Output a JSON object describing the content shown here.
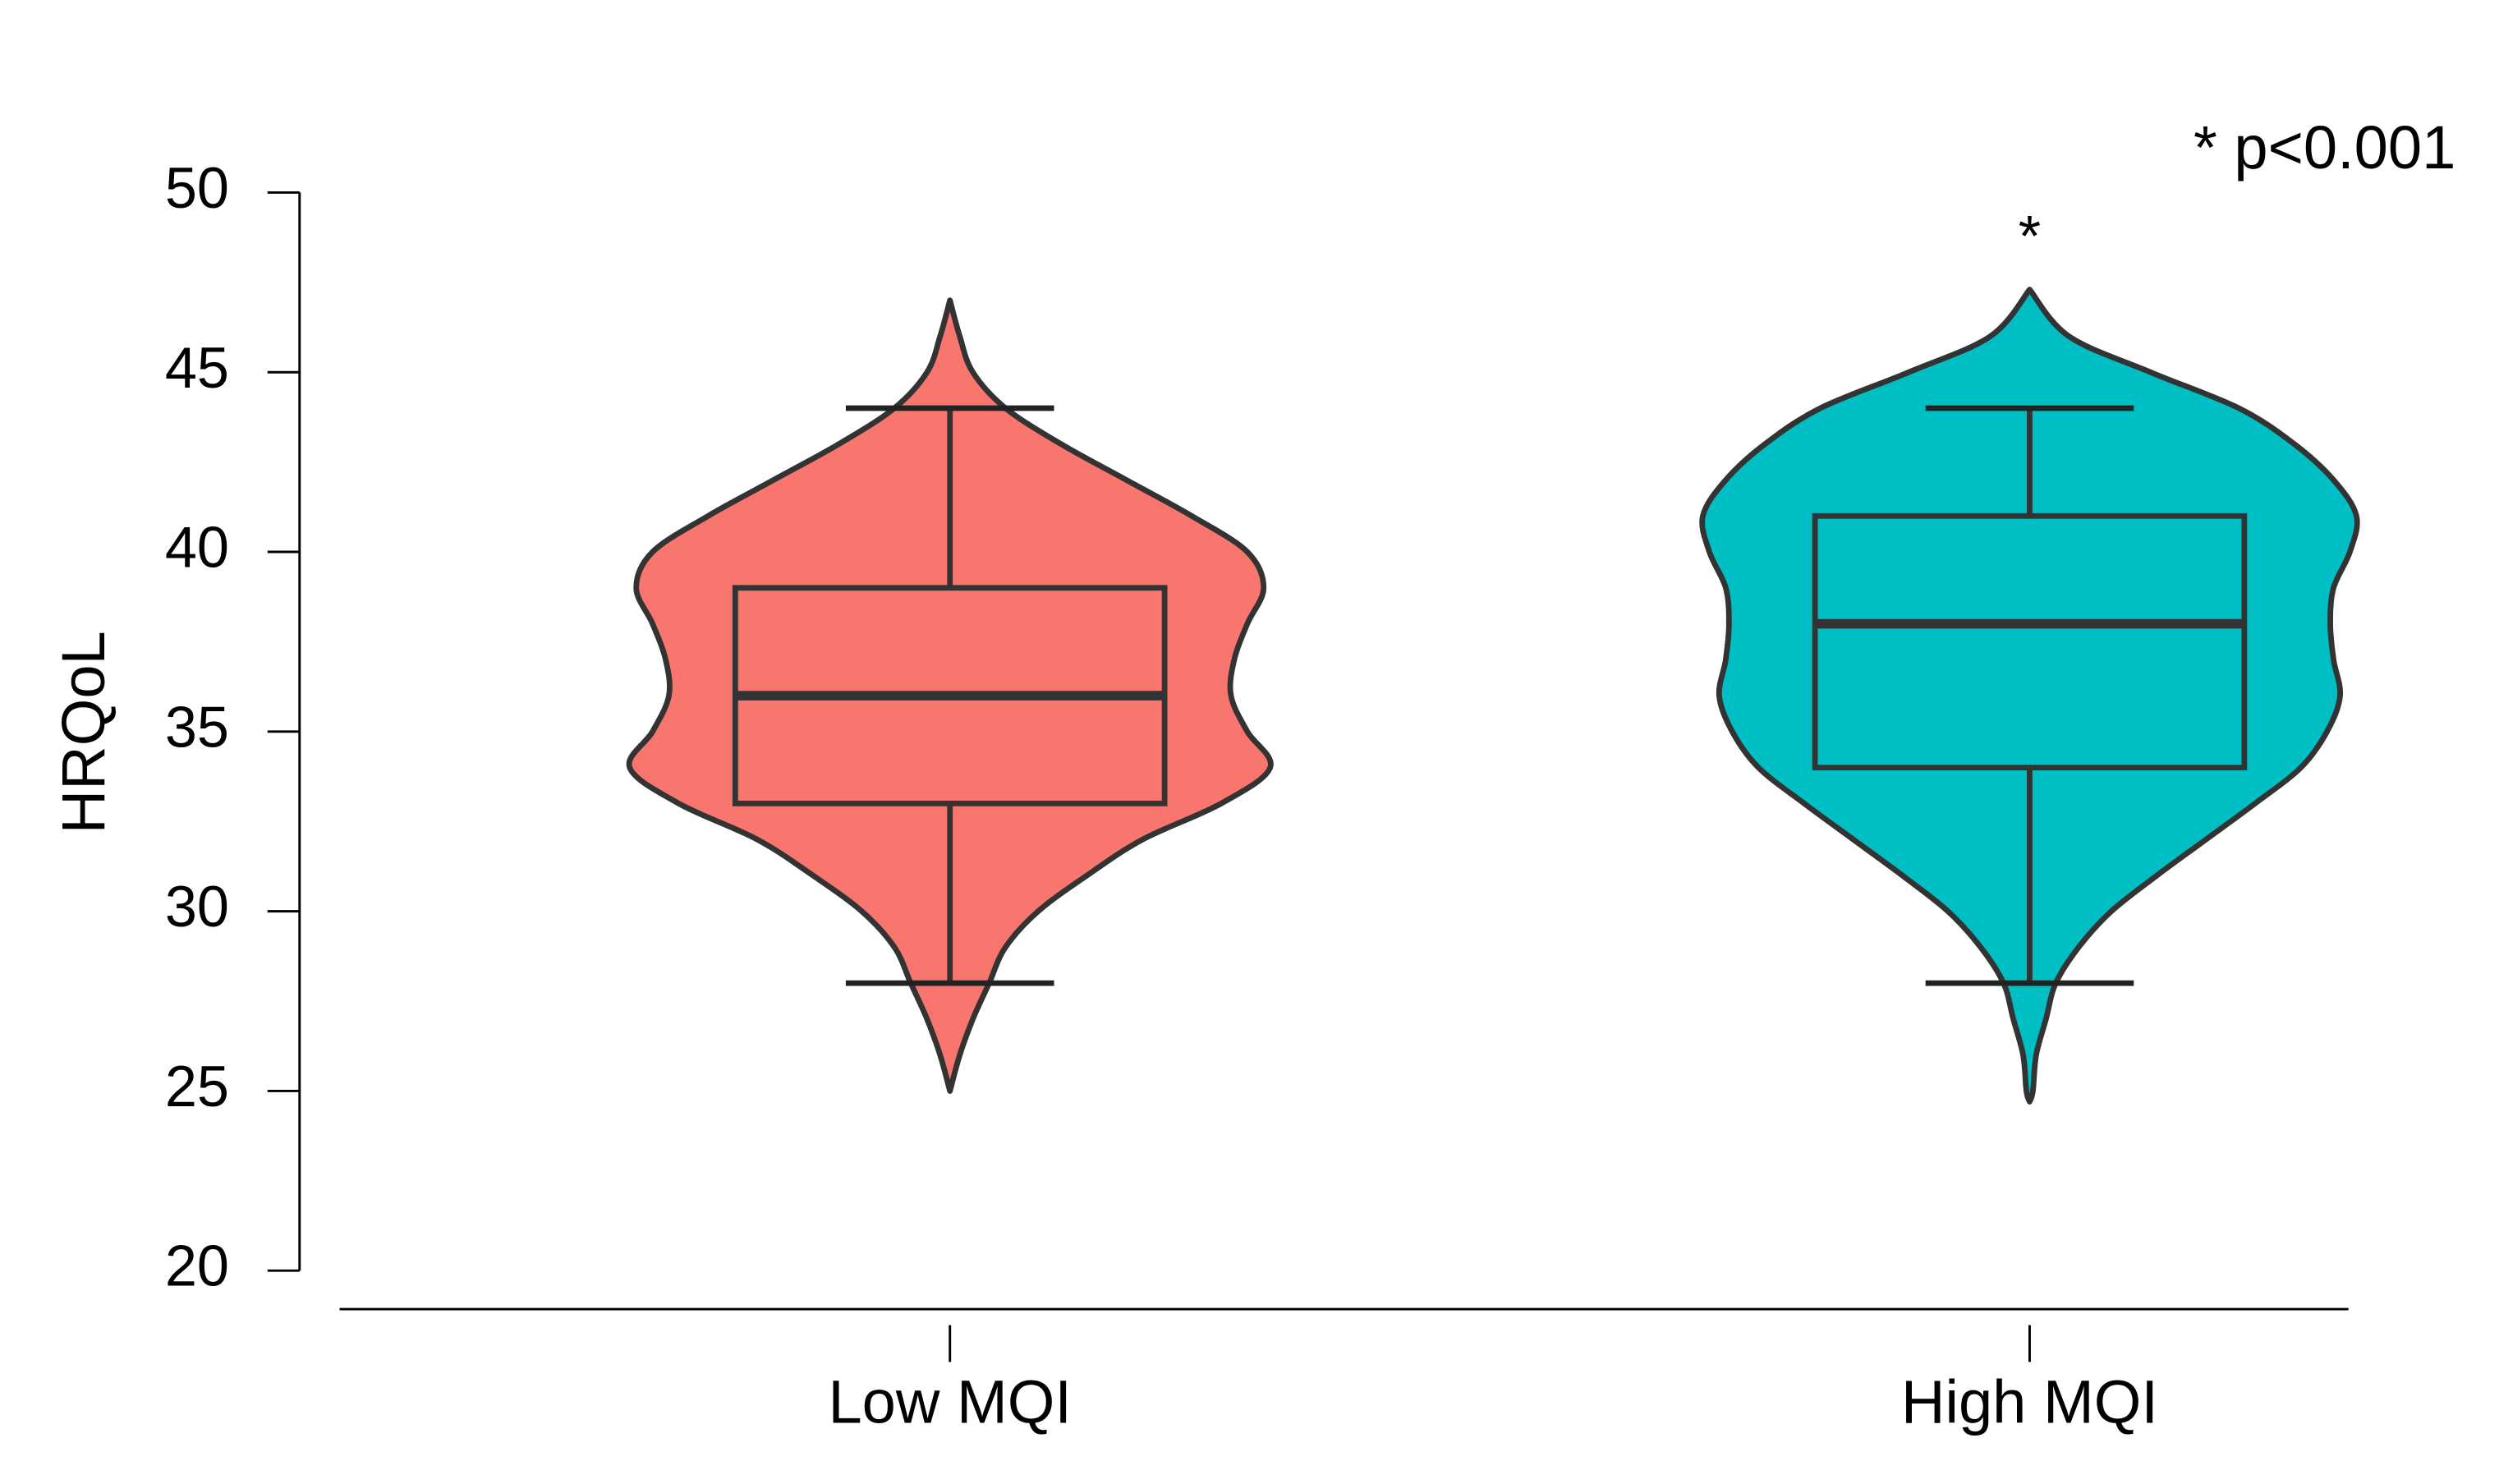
{
  "chart_data": {
    "type": "violin",
    "y_label": "HRQoL",
    "categories": [
      "Low MQI",
      "High MQI"
    ],
    "ylim": [
      20,
      50
    ],
    "yticks": [
      20,
      25,
      30,
      35,
      40,
      45,
      50
    ],
    "boxes": [
      {
        "color": "#f8766d",
        "whisker_low": 28,
        "q1": 33,
        "median": 36,
        "q3": 39,
        "whisker_high": 44,
        "violin": {
          "y": [
            25,
            26,
            27,
            28,
            29,
            30,
            31,
            32,
            33,
            34,
            35,
            36,
            37,
            38,
            39,
            40,
            41,
            42,
            43,
            44,
            45,
            46,
            47
          ],
          "density": [
            0,
            0.03,
            0.07,
            0.12,
            0.17,
            0.27,
            0.42,
            0.59,
            0.83,
            0.98,
            0.91,
            0.86,
            0.87,
            0.91,
            0.96,
            0.91,
            0.74,
            0.54,
            0.34,
            0.17,
            0.07,
            0.03,
            0
          ]
        }
      },
      {
        "color": "#00bfc4",
        "whisker_low": 28,
        "q1": 34,
        "median": 38,
        "q3": 41,
        "whisker_high": 44,
        "violin": {
          "y": [
            24.7,
            25,
            26,
            27,
            28,
            29,
            30,
            31,
            32,
            33,
            34,
            35,
            36,
            37,
            38,
            39,
            40,
            41,
            42,
            43,
            44,
            45,
            46,
            47.3
          ],
          "density": [
            0,
            0.01,
            0.02,
            0.05,
            0.08,
            0.15,
            0.25,
            0.39,
            0.54,
            0.69,
            0.83,
            0.91,
            0.95,
            0.93,
            0.92,
            0.93,
            0.98,
            1,
            0.93,
            0.81,
            0.64,
            0.37,
            0.12,
            0
          ]
        }
      }
    ],
    "significance": {
      "marker": "*",
      "note": "* p<0.001",
      "categories": [
        "High MQI"
      ]
    }
  }
}
